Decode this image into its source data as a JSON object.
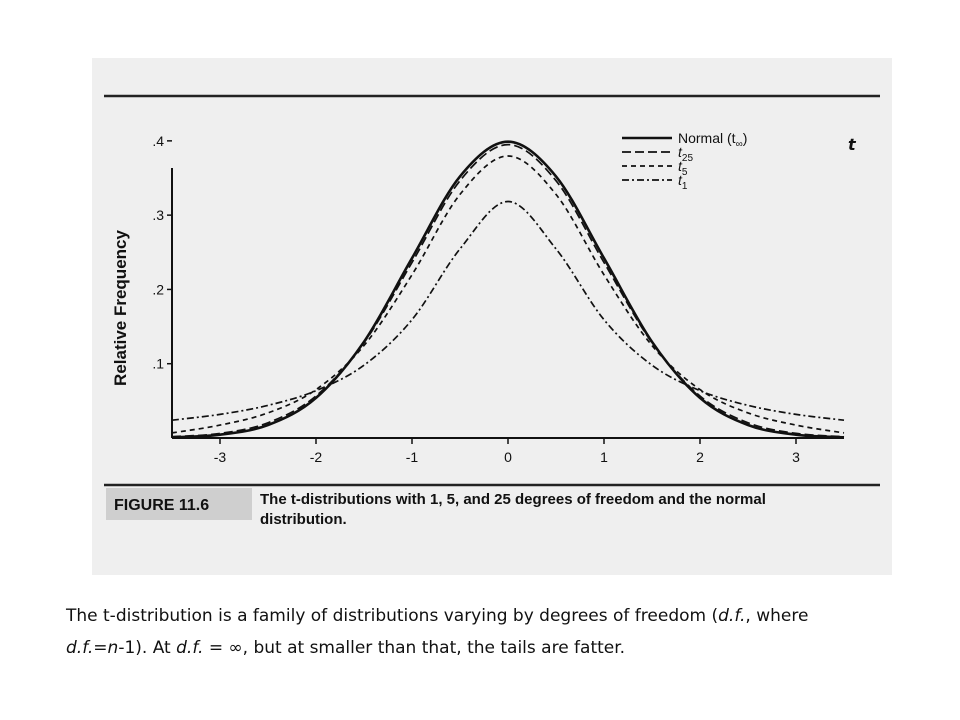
{
  "figure": {
    "label": "FIGURE 11.6",
    "caption_line1": "The t-distributions with 1, 5, and 25 degrees of freedom and the normal",
    "caption_line2": "distribution."
  },
  "chart_data": {
    "type": "line",
    "title": "",
    "xlabel": "t",
    "ylabel": "Relative Frequency",
    "xlim": [
      -3.5,
      3.5
    ],
    "ylim": [
      0,
      0.42
    ],
    "x_ticks": [
      -3,
      -2,
      -1,
      0,
      1,
      2,
      3
    ],
    "x_tick_labels": [
      "-3",
      "-2",
      "-1",
      "0",
      "1",
      "2",
      "3"
    ],
    "y_ticks": [
      0.1,
      0.2,
      0.3,
      0.4
    ],
    "y_tick_labels": [
      ".1",
      ".2",
      ".3",
      ".4"
    ],
    "grid": false,
    "legend_position": "top-right",
    "x": [
      -3.5,
      -3,
      -2.5,
      -2,
      -1.5,
      -1,
      -0.5,
      0,
      0.5,
      1,
      1.5,
      2,
      2.5,
      3,
      3.5
    ],
    "series": [
      {
        "name": "Normal (t∞)",
        "legend_base": "Normal (t",
        "legend_sub": "∞",
        "legend_tail": ")",
        "dash": "solid",
        "values": [
          0.0009,
          0.0044,
          0.0175,
          0.054,
          0.1295,
          0.242,
          0.3521,
          0.3989,
          0.3521,
          0.242,
          0.1295,
          0.054,
          0.0175,
          0.0044,
          0.0009
        ]
      },
      {
        "name": "t25",
        "legend_base": "t",
        "legend_sub": "25",
        "legend_tail": "",
        "dash": "dashed",
        "values": [
          0.0018,
          0.0062,
          0.0205,
          0.0566,
          0.1283,
          0.2363,
          0.3463,
          0.3949,
          0.3463,
          0.2363,
          0.1283,
          0.0566,
          0.0205,
          0.0062,
          0.0018
        ]
      },
      {
        "name": "t5",
        "legend_base": "t",
        "legend_sub": "5",
        "legend_tail": "",
        "dash": "dashed-short",
        "values": [
          0.0069,
          0.0173,
          0.0338,
          0.0651,
          0.1245,
          0.2197,
          0.3279,
          0.3796,
          0.3279,
          0.2197,
          0.1245,
          0.0651,
          0.0338,
          0.0173,
          0.0069
        ]
      },
      {
        "name": "t1",
        "legend_base": "t",
        "legend_sub": "1",
        "legend_tail": "",
        "dash": "dash-dot",
        "values": [
          0.024,
          0.0318,
          0.0439,
          0.0637,
          0.098,
          0.1592,
          0.2546,
          0.3183,
          0.2546,
          0.1592,
          0.098,
          0.0637,
          0.0439,
          0.0318,
          0.024
        ]
      }
    ]
  },
  "slide_caption": {
    "line1": {
      "a": "The t-distribution is a family of distributions varying by degrees of freedom (",
      "b": "d.f.",
      "c": ", where"
    },
    "line2": {
      "a": "d.f.",
      "b": "=",
      "c": "n",
      "d": "-1).  At ",
      "e": "d.f.",
      "f": " = ∞, but at smaller than that, the tails are fatter."
    }
  }
}
